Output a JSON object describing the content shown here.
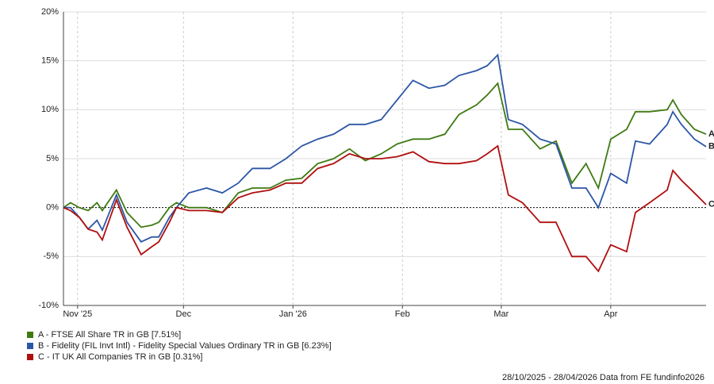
{
  "chart_data": {
    "type": "line",
    "x": [
      0,
      2,
      4.5,
      7,
      9.5,
      11,
      15,
      18,
      22,
      25,
      27,
      30,
      32,
      35.5,
      40.5,
      45,
      49.5,
      53.5,
      58.5,
      63,
      67.5,
      72,
      76.5,
      81,
      85.5,
      90,
      94.5,
      99,
      103.5,
      108,
      112,
      117,
      120,
      123,
      126,
      130,
      135,
      139.5,
      144,
      148,
      151.5,
      155,
      159.5,
      162,
      166,
      171,
      172.6,
      175,
      178.7,
      182
    ],
    "xlim": [
      0,
      182
    ],
    "xticks": [
      {
        "value": 4,
        "label": "Nov '25"
      },
      {
        "value": 34,
        "label": "Dec"
      },
      {
        "value": 65,
        "label": "Jan '26"
      },
      {
        "value": 96,
        "label": "Feb"
      },
      {
        "value": 124,
        "label": "Mar"
      },
      {
        "value": 155,
        "label": "Apr"
      }
    ],
    "ylim": [
      -10,
      20
    ],
    "yticks": [
      {
        "value": -10,
        "label": "-10%"
      },
      {
        "value": -5,
        "label": "-5%"
      },
      {
        "value": 0,
        "label": "0%"
      },
      {
        "value": 5,
        "label": "5%"
      },
      {
        "value": 10,
        "label": "10%"
      },
      {
        "value": 15,
        "label": "15%"
      },
      {
        "value": 20,
        "label": "20%"
      }
    ],
    "grid": true,
    "series": [
      {
        "name": "A - FTSE All Share TR in GB [7.51%]",
        "end_label": "A",
        "color": "#3f7a12",
        "values": [
          0,
          0.5,
          0,
          -0.3,
          0.5,
          -0.3,
          1.8,
          -0.5,
          -2,
          -1.8,
          -1.5,
          0,
          0.5,
          0,
          0,
          -0.5,
          1.5,
          2,
          2,
          2.8,
          3,
          4.5,
          5,
          6,
          4.8,
          5.5,
          6.5,
          7,
          7,
          7.5,
          9.5,
          10.5,
          11.5,
          12.7,
          8,
          8,
          6,
          6.8,
          2.5,
          4.5,
          2,
          7,
          8,
          9.8,
          9.8,
          10,
          11,
          9.5,
          8,
          7.51
        ]
      },
      {
        "name": "B - Fidelity (FIL Invt Intl) - Fidelity Special Values Ordinary TR in GB [6.23%]",
        "end_label": "B",
        "color": "#2c56a6",
        "values": [
          0,
          0,
          -1,
          -2.2,
          -1.3,
          -2.3,
          1.3,
          -1.5,
          -3.5,
          -3,
          -3,
          -1,
          0,
          1.5,
          2,
          1.5,
          2.5,
          4,
          4,
          5,
          6.3,
          7,
          7.5,
          8.5,
          8.5,
          9,
          11,
          13,
          12.2,
          12.5,
          13.5,
          14,
          14.5,
          15.6,
          9,
          8.5,
          7,
          6.5,
          2,
          2,
          0,
          3.5,
          2.5,
          6.8,
          6.5,
          8.5,
          9.8,
          8.5,
          7,
          6.23
        ]
      },
      {
        "name": "C - IT UK All Companies TR in GB [0.31%]",
        "end_label": "C",
        "color": "#b00f0f",
        "values": [
          0,
          -0.3,
          -1,
          -2.2,
          -2.5,
          -3.3,
          0.8,
          -2,
          -4.8,
          -4,
          -3.5,
          -1.5,
          0,
          -0.3,
          -0.3,
          -0.5,
          1,
          1.5,
          1.8,
          2.5,
          2.5,
          4,
          4.5,
          5.5,
          5,
          5,
          5.2,
          5.7,
          4.7,
          4.5,
          4.5,
          4.8,
          5.5,
          6.3,
          1.3,
          0.5,
          -1.5,
          -1.5,
          -5,
          -5,
          -6.5,
          -3.8,
          -4.5,
          -0.5,
          0.5,
          1.8,
          3.8,
          2.8,
          1.5,
          0.31
        ]
      }
    ],
    "footer": "28/10/2025 - 28/04/2026 Data from FE fundinfo2026"
  }
}
